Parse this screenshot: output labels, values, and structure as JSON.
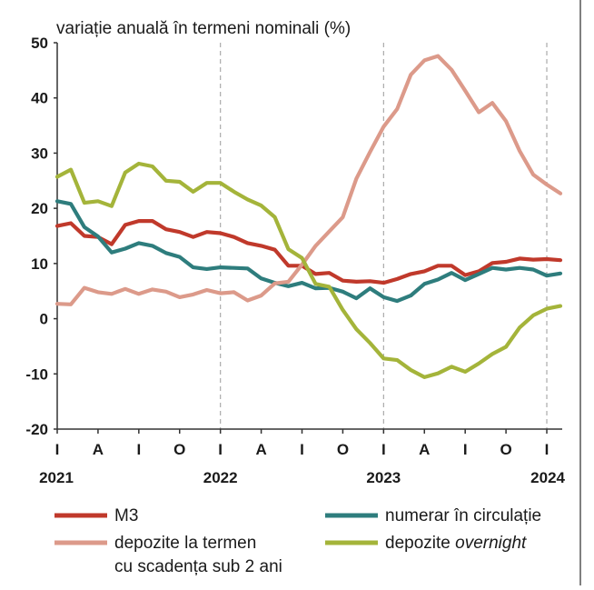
{
  "chart_data": {
    "type": "line",
    "ylabel": "variație anuală în termeni nominali (%)",
    "ylim": [
      -20,
      50
    ],
    "yticks": [
      "50",
      "40",
      "30",
      "20",
      "10",
      "0",
      "-10",
      "-20"
    ],
    "ytick_values": [
      50,
      40,
      30,
      20,
      10,
      0,
      -10,
      -20
    ],
    "xtick_labels": [
      "I",
      "A",
      "I",
      "O",
      "I",
      "A",
      "I",
      "O",
      "I",
      "A",
      "I",
      "O",
      "I"
    ],
    "year_labels": [
      "2021",
      "2022",
      "2023",
      "2024"
    ],
    "period_start": "2021-01",
    "period_end": "2024-01",
    "grid": "vertical dashed lines at January of each year",
    "colors": {
      "M3": "#c0392b",
      "numerar": "#2e7d7d",
      "termen": "#dc9a8a",
      "overnight": "#a4b43a",
      "axis": "#333333",
      "grid": "#aaaaaa",
      "frame": "#7f7f7f"
    },
    "series": [
      {
        "key": "M3",
        "name": "M3",
        "color": "#c0392b",
        "values": [
          16.8,
          17.3,
          15.0,
          14.8,
          13.5,
          17.0,
          17.7,
          17.7,
          16.2,
          15.7,
          14.8,
          15.7,
          15.5,
          14.8,
          13.7,
          13.2,
          12.5,
          9.6,
          9.6,
          8.1,
          8.3,
          6.9,
          6.7,
          6.8,
          6.5,
          7.2,
          8.1,
          8.6,
          9.6,
          9.6,
          7.9,
          8.6,
          10.1,
          10.3,
          10.9,
          10.7,
          10.8,
          10.6
        ]
      },
      {
        "key": "numerar",
        "name": "numerar în circulație",
        "color": "#2e7d7d",
        "values": [
          21.3,
          20.8,
          16.6,
          14.9,
          12.0,
          12.7,
          13.7,
          13.2,
          11.9,
          11.2,
          9.3,
          9.0,
          9.3,
          9.2,
          9.1,
          7.3,
          6.5,
          5.9,
          6.5,
          5.5,
          5.6,
          4.9,
          3.7,
          5.5,
          3.9,
          3.2,
          4.2,
          6.3,
          7.1,
          8.3,
          7.0,
          8.1,
          9.2,
          8.9,
          9.2,
          8.9,
          7.8,
          8.2
        ]
      },
      {
        "key": "termen",
        "name": "depozite la termen cu scadența sub 2 ani",
        "color": "#dc9a8a",
        "values": [
          2.7,
          2.6,
          5.6,
          4.8,
          4.5,
          5.4,
          4.5,
          5.3,
          4.9,
          3.9,
          4.4,
          5.2,
          4.6,
          4.8,
          3.3,
          4.2,
          6.4,
          6.7,
          9.8,
          13.2,
          15.8,
          18.4,
          25.4,
          30.2,
          34.8,
          38.0,
          44.2,
          46.8,
          47.6,
          45.1,
          41.3,
          37.4,
          39.1,
          35.8,
          30.4,
          26.1,
          24.3,
          22.7
        ]
      },
      {
        "key": "overnight",
        "name": "depozite overnight",
        "color": "#a4b43a",
        "values": [
          25.7,
          27.0,
          21.0,
          21.3,
          20.4,
          26.5,
          28.1,
          27.6,
          25.0,
          24.8,
          23.0,
          24.6,
          24.6,
          23.0,
          21.6,
          20.5,
          18.4,
          12.6,
          11.0,
          6.3,
          5.8,
          1.6,
          -1.9,
          -4.4,
          -7.2,
          -7.5,
          -9.3,
          -10.6,
          -9.9,
          -8.7,
          -9.6,
          -8.1,
          -6.4,
          -5.1,
          -1.6,
          0.6,
          1.8,
          2.3
        ]
      }
    ]
  },
  "legend": {
    "m3": "M3",
    "numerar": "numerar în circulație",
    "termen_line1": "depozite la termen",
    "termen_line2": "cu scadența sub 2 ani",
    "overnight_prefix": "depozite ",
    "overnight_italic": "overnight"
  }
}
